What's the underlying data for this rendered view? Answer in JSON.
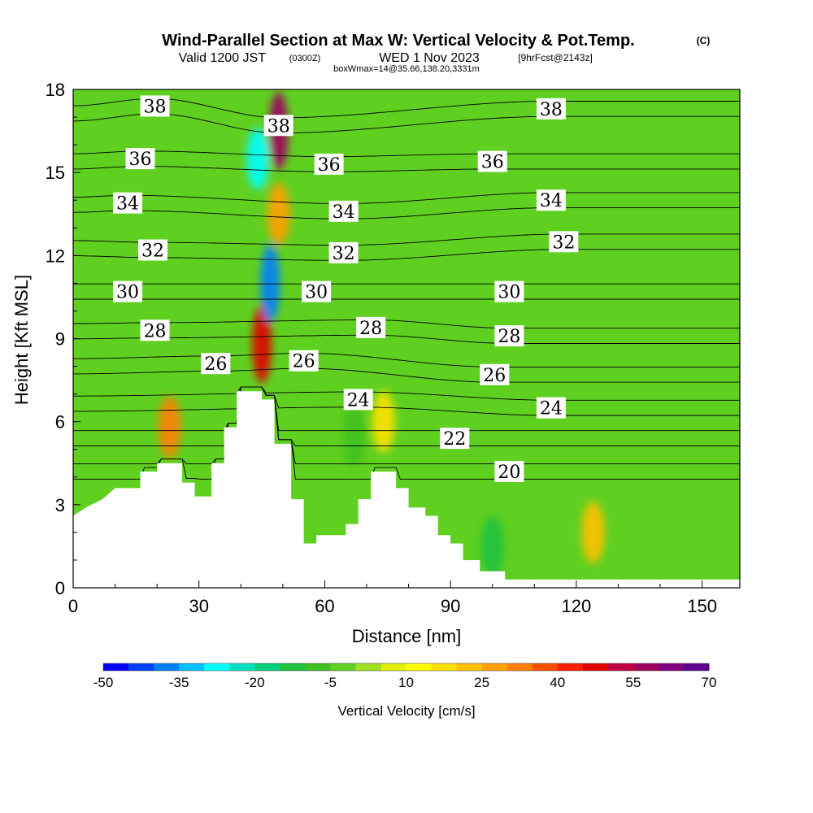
{
  "header": {
    "title": "Wind-Parallel Section at Max W: Vertical Velocity & Pot.Temp.",
    "copyright": "(C)",
    "valid_prefix": "Valid 1200 JST",
    "valid_utc": "(0300Z)",
    "valid_date": "WED 1 Nov 2023",
    "fcst": "[9hrFcst@2143z]",
    "box": "boxWmax=14@35.66,138.20,3331m"
  },
  "chart_data": {
    "type": "heatmap",
    "xlabel": "Distance [nm]",
    "ylabel": "Height [Kft MSL]",
    "xlim": [
      0,
      159
    ],
    "ylim": [
      0,
      18
    ],
    "x_ticks": [
      "0",
      "30",
      "60",
      "90",
      "120",
      "150"
    ],
    "y_ticks": [
      "0",
      "3",
      "6",
      "9",
      "12",
      "15",
      "18"
    ],
    "colorbar": {
      "label": "Vertical Velocity [cm/s]",
      "tick_labels": [
        "-50",
        "-35",
        "-20",
        "-5",
        "10",
        "25",
        "40",
        "55",
        "70"
      ],
      "min": -50,
      "max": 70,
      "colors": [
        "#0000ff",
        "#0040ff",
        "#0080ff",
        "#00c0ff",
        "#00ffff",
        "#00e0c0",
        "#00d080",
        "#20c040",
        "#40c020",
        "#60d020",
        "#a0e020",
        "#e0f000",
        "#ffff00",
        "#ffe000",
        "#ffc000",
        "#ffa000",
        "#ff8000",
        "#ff5000",
        "#ff2000",
        "#e00000",
        "#c00040",
        "#a00060",
        "#800080",
        "#600090"
      ]
    },
    "terrain_kft": [
      [
        0,
        2.6
      ],
      [
        3,
        2.9
      ],
      [
        7,
        3.2
      ],
      [
        10,
        3.6
      ],
      [
        16,
        3.6
      ],
      [
        16,
        4.2
      ],
      [
        20,
        4.2
      ],
      [
        20,
        4.5
      ],
      [
        26,
        4.5
      ],
      [
        26,
        3.8
      ],
      [
        29,
        3.8
      ],
      [
        29,
        3.3
      ],
      [
        33,
        3.3
      ],
      [
        33,
        4.5
      ],
      [
        36,
        4.5
      ],
      [
        36,
        5.8
      ],
      [
        39,
        5.8
      ],
      [
        39,
        7.1
      ],
      [
        45,
        7.1
      ],
      [
        45,
        6.8
      ],
      [
        48,
        6.8
      ],
      [
        48,
        5.2
      ],
      [
        52,
        5.2
      ],
      [
        52,
        3.2
      ],
      [
        55,
        3.2
      ],
      [
        55,
        1.6
      ],
      [
        58,
        1.6
      ],
      [
        58,
        1.9
      ],
      [
        65,
        1.9
      ],
      [
        65,
        2.3
      ],
      [
        68,
        2.3
      ],
      [
        68,
        3.2
      ],
      [
        71,
        3.2
      ],
      [
        71,
        4.2
      ],
      [
        77,
        4.2
      ],
      [
        77,
        3.6
      ],
      [
        80,
        3.6
      ],
      [
        80,
        2.9
      ],
      [
        84,
        2.9
      ],
      [
        84,
        2.6
      ],
      [
        87,
        2.6
      ],
      [
        87,
        1.9
      ],
      [
        90,
        1.9
      ],
      [
        90,
        1.6
      ],
      [
        93,
        1.6
      ],
      [
        93,
        1.0
      ],
      [
        97,
        1.0
      ],
      [
        97,
        0.6
      ],
      [
        103,
        0.6
      ],
      [
        103,
        0.3
      ],
      [
        159,
        0.3
      ]
    ],
    "w_features_cm_s": [
      {
        "x": 23,
        "y": 5.8,
        "w": 30
      },
      {
        "x": 45,
        "y": 8.8,
        "w": 45
      },
      {
        "x": 49,
        "y": 16.5,
        "w": 55
      },
      {
        "x": 49,
        "y": 13.5,
        "w": 25
      },
      {
        "x": 44,
        "y": 15.5,
        "w": -30
      },
      {
        "x": 47,
        "y": 11.0,
        "w": -40
      },
      {
        "x": 74,
        "y": 6.0,
        "w": 15
      },
      {
        "x": 124,
        "y": 2.0,
        "w": 20
      },
      {
        "x": 67,
        "y": 5.5,
        "w": -8
      },
      {
        "x": 100,
        "y": 1.5,
        "w": -12
      }
    ],
    "isentropes_K": [
      20,
      22,
      24,
      26,
      28,
      30,
      32,
      34,
      36,
      38
    ],
    "isentrope_labels": [
      {
        "text": "38",
        "x": 19.5,
        "y": 17.4
      },
      {
        "text": "38",
        "x": 49,
        "y": 16.7
      },
      {
        "text": "38",
        "x": 114,
        "y": 17.3
      },
      {
        "text": "36",
        "x": 16,
        "y": 15.5
      },
      {
        "text": "36",
        "x": 61,
        "y": 15.3
      },
      {
        "text": "36",
        "x": 100,
        "y": 15.4
      },
      {
        "text": "34",
        "x": 13,
        "y": 13.9
      },
      {
        "text": "34",
        "x": 64.5,
        "y": 13.6
      },
      {
        "text": "34",
        "x": 114,
        "y": 14.0
      },
      {
        "text": "32",
        "x": 19,
        "y": 12.2
      },
      {
        "text": "32",
        "x": 64.5,
        "y": 12.1
      },
      {
        "text": "32",
        "x": 117,
        "y": 12.5
      },
      {
        "text": "30",
        "x": 13,
        "y": 10.7
      },
      {
        "text": "30",
        "x": 58,
        "y": 10.7
      },
      {
        "text": "30",
        "x": 104,
        "y": 10.7
      },
      {
        "text": "28",
        "x": 19.5,
        "y": 9.3
      },
      {
        "text": "28",
        "x": 71,
        "y": 9.4
      },
      {
        "text": "28",
        "x": 104,
        "y": 9.1
      },
      {
        "text": "26",
        "x": 34,
        "y": 8.1
      },
      {
        "text": "26",
        "x": 55,
        "y": 8.2
      },
      {
        "text": "26",
        "x": 100.5,
        "y": 7.7
      },
      {
        "text": "24",
        "x": 68,
        "y": 6.8
      },
      {
        "text": "24",
        "x": 114,
        "y": 6.5
      },
      {
        "text": "22",
        "x": 91,
        "y": 5.4
      },
      {
        "text": "20",
        "x": 104,
        "y": 4.2
      }
    ]
  }
}
